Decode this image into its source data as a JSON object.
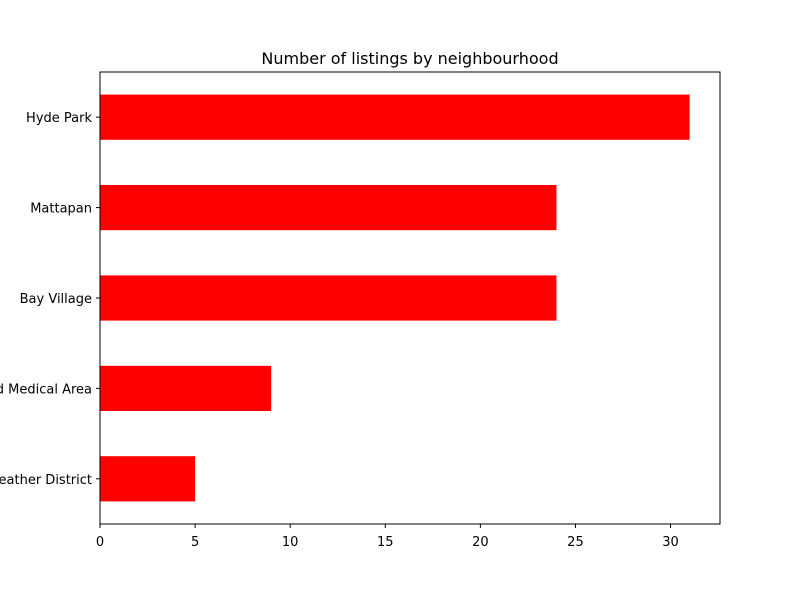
{
  "chart_data": {
    "type": "bar",
    "orientation": "horizontal",
    "title": "Number of listings by neighbourhood",
    "xlabel": "",
    "ylabel": "",
    "categories": [
      "Hyde Park",
      "Mattapan",
      "Bay Village",
      "Longwood Medical Area",
      "Leather District"
    ],
    "values": [
      31,
      24,
      24,
      9,
      5
    ],
    "xlim": [
      0,
      32.6
    ],
    "xticks": [
      0,
      5,
      10,
      15,
      20,
      25,
      30
    ],
    "grid": false,
    "legend": "none",
    "bar_color": "#ff0000"
  }
}
